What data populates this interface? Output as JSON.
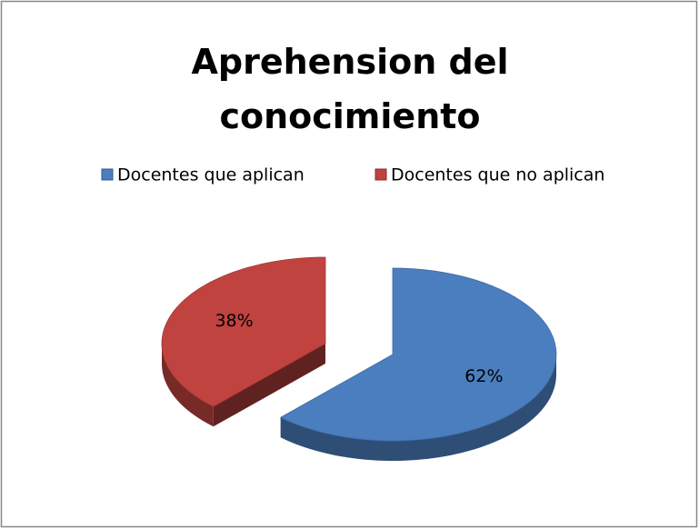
{
  "chart_data": {
    "type": "pie",
    "title": "Aprehension del conocimiento",
    "categories": [
      "Docentes que aplican",
      "Docentes que no aplican"
    ],
    "values": [
      62,
      38
    ],
    "value_labels": [
      "62%",
      "38%"
    ],
    "colors": [
      "#4a7ebf",
      "#c0433f"
    ],
    "legend": "top"
  }
}
